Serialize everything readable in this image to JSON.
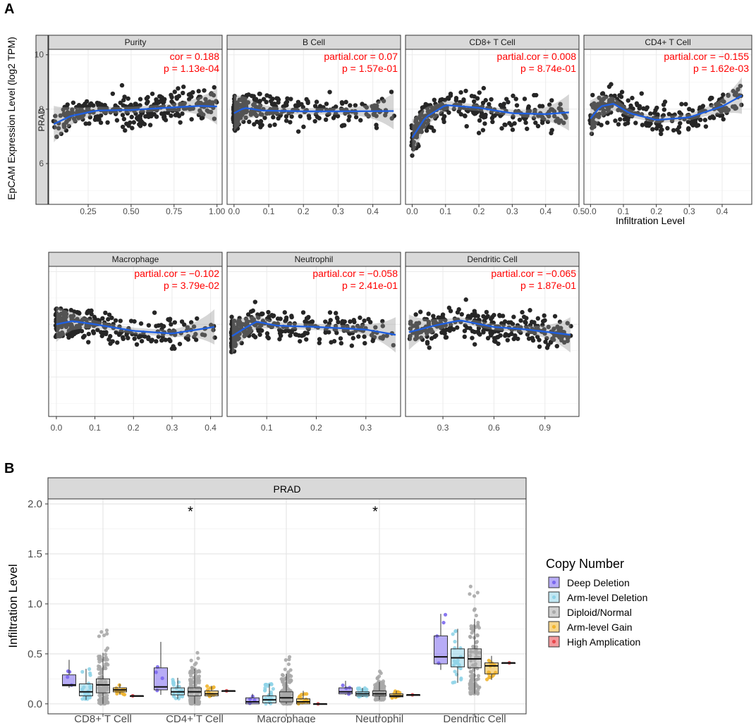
{
  "figure": {
    "panel_a_label": "A",
    "panel_b_label": "B",
    "side_strip_label": "PRAD",
    "y_title_a": "EpCAM Expression Level (log2 TPM)",
    "x_title_a": "Infiltration Level",
    "strip_b_label": "PRAD",
    "y_title_b": "Infiltration Level",
    "significance_mark": "*"
  },
  "chart_data": [
    {
      "type": "scatter",
      "title": "Purity",
      "annotation_stat": "cor = 0.188",
      "annotation_p": "p = 1.13e-04",
      "ylim": [
        4.5,
        10.2
      ],
      "yticks": [
        6,
        8,
        10
      ],
      "xlim": [
        0.02,
        1.03
      ],
      "xticks": [
        0.25,
        0.5,
        0.75,
        1.0
      ],
      "xtick_labels": [
        "0.25",
        "0.50",
        "0.75",
        "1.00"
      ],
      "n_points": 300,
      "trend": [
        [
          0.05,
          7.45
        ],
        [
          0.15,
          7.75
        ],
        [
          0.3,
          7.95
        ],
        [
          0.5,
          7.97
        ],
        [
          0.7,
          8.05
        ],
        [
          0.9,
          8.12
        ],
        [
          1.0,
          8.1
        ]
      ]
    },
    {
      "type": "scatter",
      "title": "B Cell",
      "annotation_stat": "partial.cor = 0.07",
      "annotation_p": "p = 1.57e-01",
      "ylim": [
        4.5,
        10.2
      ],
      "xlim": [
        -0.02,
        0.48
      ],
      "xticks": [
        0.0,
        0.1,
        0.2,
        0.3,
        0.4
      ],
      "xtick_labels": [
        "0.0",
        "0.1",
        "0.2",
        "0.3",
        "0.4"
      ],
      "n_points": 280,
      "trend": [
        [
          0.0,
          7.85
        ],
        [
          0.03,
          8.05
        ],
        [
          0.08,
          7.95
        ],
        [
          0.2,
          7.92
        ],
        [
          0.3,
          7.92
        ],
        [
          0.46,
          7.93
        ]
      ]
    },
    {
      "type": "scatter",
      "title": "CD8+ T Cell",
      "annotation_stat": "partial.cor = 0.008",
      "annotation_p": "p = 8.74e-01",
      "ylim": [
        4.5,
        10.2
      ],
      "xlim": [
        -0.02,
        0.5
      ],
      "xticks": [
        0.0,
        0.1,
        0.2,
        0.3,
        0.4,
        0.5
      ],
      "xtick_labels": [
        "0.0",
        "0.1",
        "0.2",
        "0.3",
        "0.4",
        "0.5"
      ],
      "n_points": 280,
      "trend": [
        [
          0.0,
          6.95
        ],
        [
          0.04,
          7.7
        ],
        [
          0.1,
          8.15
        ],
        [
          0.2,
          8.05
        ],
        [
          0.3,
          7.85
        ],
        [
          0.4,
          7.82
        ],
        [
          0.47,
          7.88
        ]
      ]
    },
    {
      "type": "scatter",
      "title": "CD4+ T Cell",
      "annotation_stat": "partial.cor = −0.155",
      "annotation_p": "p = 1.62e-03",
      "ylim": [
        4.5,
        10.2
      ],
      "xlim": [
        -0.02,
        0.49
      ],
      "xticks": [
        0.0,
        0.1,
        0.2,
        0.3,
        0.4
      ],
      "xtick_labels": [
        "0.0",
        "0.1",
        "0.2",
        "0.3",
        "0.4"
      ],
      "n_points": 280,
      "trend": [
        [
          0.0,
          7.65
        ],
        [
          0.03,
          8.1
        ],
        [
          0.07,
          8.2
        ],
        [
          0.12,
          7.85
        ],
        [
          0.2,
          7.6
        ],
        [
          0.3,
          7.7
        ],
        [
          0.4,
          8.1
        ],
        [
          0.46,
          8.5
        ]
      ]
    },
    {
      "type": "scatter",
      "title": "Macrophage",
      "annotation_stat": "partial.cor = −0.102",
      "annotation_p": "p = 3.79e-02",
      "ylim": [
        4.5,
        10.2
      ],
      "xlim": [
        -0.02,
        0.43
      ],
      "xticks": [
        0.0,
        0.1,
        0.2,
        0.3,
        0.4
      ],
      "xtick_labels": [
        "0.0",
        "0.1",
        "0.2",
        "0.3",
        "0.4"
      ],
      "n_points": 280,
      "trend": [
        [
          0.0,
          8.0
        ],
        [
          0.04,
          8.12
        ],
        [
          0.1,
          8.0
        ],
        [
          0.2,
          7.75
        ],
        [
          0.3,
          7.65
        ],
        [
          0.41,
          7.9
        ]
      ]
    },
    {
      "type": "scatter",
      "title": "Neutrophil",
      "annotation_stat": "partial.cor = −0.058",
      "annotation_p": "p = 2.41e-01",
      "ylim": [
        4.5,
        10.2
      ],
      "xlim": [
        0.02,
        0.37
      ],
      "xticks": [
        0.1,
        0.2,
        0.3
      ],
      "xtick_labels": [
        "0.1",
        "0.2",
        "0.3"
      ],
      "n_points": 280,
      "trend": [
        [
          0.03,
          7.55
        ],
        [
          0.06,
          7.9
        ],
        [
          0.08,
          8.1
        ],
        [
          0.12,
          7.95
        ],
        [
          0.2,
          7.9
        ],
        [
          0.3,
          7.8
        ],
        [
          0.36,
          7.6
        ]
      ]
    },
    {
      "type": "scatter",
      "title": "Dendritic Cell",
      "annotation_stat": "partial.cor = −0.065",
      "annotation_p": "p = 1.87e-01",
      "ylim": [
        4.5,
        10.2
      ],
      "xlim": [
        0.08,
        1.1
      ],
      "xticks": [
        0.3,
        0.6,
        0.9
      ],
      "xtick_labels": [
        "0.3",
        "0.6",
        "0.9"
      ],
      "n_points": 280,
      "trend": [
        [
          0.1,
          7.7
        ],
        [
          0.25,
          7.95
        ],
        [
          0.4,
          8.15
        ],
        [
          0.6,
          7.9
        ],
        [
          0.8,
          7.8
        ],
        [
          1.05,
          7.6
        ]
      ]
    },
    {
      "type": "box",
      "title": "PRAD",
      "xlabel": "",
      "ylabel": "Infiltration Level",
      "ylim": [
        -0.1,
        2.05
      ],
      "yticks": [
        0.0,
        0.5,
        1.0,
        1.5,
        2.0
      ],
      "ytick_labels": [
        "0.0",
        "0.5",
        "1.0",
        "1.5",
        "2.0"
      ],
      "categories": [
        "CD8+ T Cell",
        "CD4+ T Cell",
        "Macrophage",
        "Neutrophil",
        "Dendritic Cell"
      ],
      "significant": [
        false,
        true,
        false,
        true,
        false
      ],
      "legend_title": "Copy Number",
      "legend_position": "right",
      "series": [
        {
          "name": "Deep Deletion",
          "color": "#7b68ee",
          "boxes": [
            [
              0.16,
              0.18,
              0.19,
              0.29,
              0.44
            ],
            [
              0.09,
              0.14,
              0.17,
              0.36,
              0.62
            ],
            [
              0.0,
              0.0,
              0.02,
              0.06,
              0.1
            ],
            [
              0.09,
              0.1,
              0.12,
              0.16,
              0.23
            ],
            [
              0.34,
              0.4,
              0.47,
              0.68,
              0.9
            ]
          ]
        },
        {
          "name": "Arm-level Deletion",
          "color": "#8fd4e8",
          "boxes": [
            [
              0.04,
              0.08,
              0.12,
              0.2,
              0.35
            ],
            [
              0.05,
              0.09,
              0.12,
              0.16,
              0.26
            ],
            [
              0.0,
              0.01,
              0.04,
              0.08,
              0.2
            ],
            [
              0.07,
              0.08,
              0.1,
              0.12,
              0.16
            ],
            [
              0.21,
              0.37,
              0.46,
              0.55,
              0.75
            ]
          ]
        },
        {
          "name": "Diploid/Normal",
          "color": "#a9a9a9",
          "boxes": [
            [
              0.0,
              0.11,
              0.19,
              0.25,
              0.51
            ],
            [
              0.0,
              0.08,
              0.12,
              0.16,
              0.35
            ],
            [
              0.0,
              0.02,
              0.06,
              0.12,
              0.3
            ],
            [
              0.04,
              0.08,
              0.1,
              0.13,
              0.22
            ],
            [
              0.1,
              0.36,
              0.45,
              0.55,
              0.85
            ]
          ]
        },
        {
          "name": "Arm-level Gain",
          "color": "#f0b42d",
          "boxes": [
            [
              0.09,
              0.12,
              0.14,
              0.16,
              0.2
            ],
            [
              0.07,
              0.08,
              0.1,
              0.13,
              0.18
            ],
            [
              0.0,
              0.0,
              0.02,
              0.05,
              0.13
            ],
            [
              0.06,
              0.07,
              0.08,
              0.1,
              0.13
            ],
            [
              0.24,
              0.3,
              0.38,
              0.41,
              0.48
            ]
          ]
        },
        {
          "name": "High Amplication",
          "color": "#e8474c",
          "boxes": [
            [
              0.08,
              0.08,
              0.08,
              0.08,
              0.08
            ],
            [
              0.13,
              0.13,
              0.13,
              0.13,
              0.13
            ],
            [
              0.0,
              0.0,
              0.0,
              0.0,
              0.0
            ],
            [
              0.09,
              0.09,
              0.09,
              0.09,
              0.09
            ],
            [
              0.41,
              0.41,
              0.41,
              0.41,
              0.41
            ]
          ]
        }
      ]
    }
  ]
}
